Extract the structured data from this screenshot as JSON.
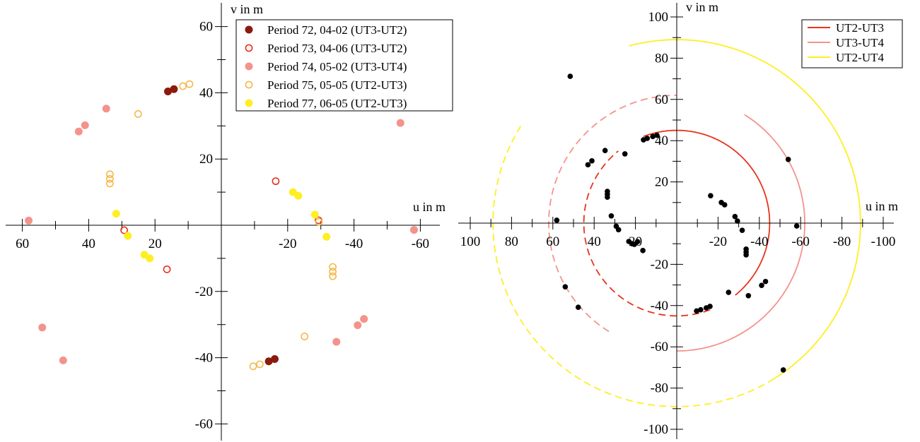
{
  "chart_data": [
    {
      "type": "scatter",
      "xlabel": "u in m",
      "ylabel": "v in m",
      "xlim": [
        65,
        -67
      ],
      "ylim": [
        -65,
        62
      ],
      "x_ticks": [
        "60",
        "40",
        "20",
        "-20",
        "-40",
        "-60"
      ],
      "y_ticks": [
        "60",
        "40",
        "20",
        "-20",
        "-40",
        "-60"
      ],
      "legend_position": "top-right",
      "series": [
        {
          "name": "Period 72, 04-02 (UT3-UT2)",
          "marker": "filled",
          "color": "#8b1a0e",
          "points": [
            [
              16.1,
              40.4
            ],
            [
              14.3,
              41.1
            ],
            [
              -14.3,
              -41.1
            ],
            [
              -16.1,
              -40.4
            ]
          ]
        },
        {
          "name": "Period 73, 04-06 (UT3-UT2)",
          "marker": "open",
          "color": "#e8331c",
          "points": [
            [
              -16.4,
              13.3
            ],
            [
              29.3,
              -1.5
            ],
            [
              16.4,
              -13.3
            ],
            [
              -29.3,
              1.5
            ]
          ]
        },
        {
          "name": "Period 74, 05-02 (UT3-UT4)",
          "marker": "filled",
          "color": "#f4938b",
          "points": [
            [
              34.7,
              35.2
            ],
            [
              41.1,
              30.2
            ],
            [
              43.0,
              28.3
            ],
            [
              -54.0,
              30.9
            ],
            [
              58.1,
              1.4
            ],
            [
              -58.1,
              -1.4
            ],
            [
              -34.7,
              -35.2
            ],
            [
              -41.1,
              -30.2
            ],
            [
              -43.0,
              -28.3
            ],
            [
              54.0,
              -30.9
            ],
            [
              47.7,
              -40.8
            ]
          ]
        },
        {
          "name": "Period 75, 05-05 (UT2-UT3)",
          "marker": "open",
          "color": "#f5b84a",
          "points": [
            [
              25.1,
              33.6
            ],
            [
              11.6,
              42.0
            ],
            [
              9.6,
              42.6
            ],
            [
              33.6,
              15.4
            ],
            [
              33.6,
              14.0
            ],
            [
              33.6,
              12.6
            ],
            [
              -29.4,
              1.0
            ],
            [
              -11.6,
              -42.0
            ],
            [
              -9.6,
              -42.6
            ],
            [
              -25.1,
              -33.6
            ],
            [
              -33.6,
              -15.4
            ],
            [
              -33.6,
              -14.0
            ],
            [
              -33.6,
              -12.6
            ]
          ]
        },
        {
          "name": "Period 77, 06-05 (UT2-UT3)",
          "marker": "filled",
          "color": "#ffee22",
          "points": [
            [
              -21.6,
              10.0
            ],
            [
              -23.2,
              8.9
            ],
            [
              -28.2,
              3.2
            ],
            [
              31.7,
              3.5
            ],
            [
              28.2,
              -3.2
            ],
            [
              23.2,
              -8.9
            ],
            [
              21.6,
              -10.0
            ],
            [
              -31.7,
              -3.5
            ]
          ]
        }
      ]
    },
    {
      "type": "line",
      "xlabel": "u in m",
      "ylabel": "v in m",
      "xlim": [
        105,
        -105
      ],
      "ylim": [
        -105,
        105
      ],
      "x_ticks": [
        "100",
        "80",
        "60",
        "40",
        "20",
        "-20",
        "-40",
        "-60",
        "-80",
        "-100"
      ],
      "y_ticks": [
        "100",
        "80",
        "60",
        "40",
        "20",
        "-20",
        "-40",
        "-60",
        "-80",
        "-100"
      ],
      "legend_position": "top-right",
      "series": [
        {
          "name": "UT2-UT3",
          "color": "#e8331c",
          "radius": 45,
          "solid_from_deg": 69,
          "solid_to_deg": 231,
          "dashed_from_deg": 249,
          "dashed_to_deg": 411
        },
        {
          "name": "UT3-UT4",
          "color": "#f4938b",
          "radius": 62,
          "solid_from_deg": 122,
          "solid_to_deg": 270,
          "dashed_from_deg": 302,
          "dashed_to_deg": 450
        },
        {
          "name": "UT2-UT4",
          "color": "#ffee22",
          "radius": 89,
          "solid_from_deg": 75,
          "solid_to_deg": 238,
          "dashed_from_deg": 238,
          "dashed_to_deg": 392
        }
      ],
      "observed_points": [
        [
          16.1,
          40.4
        ],
        [
          14.3,
          41.1
        ],
        [
          -14.3,
          -41.1
        ],
        [
          -16.1,
          -40.4
        ],
        [
          -16.4,
          13.3
        ],
        [
          16.4,
          -13.3
        ],
        [
          34.7,
          35.2
        ],
        [
          41.1,
          30.2
        ],
        [
          43.0,
          28.3
        ],
        [
          -54.0,
          30.9
        ],
        [
          58.1,
          1.4
        ],
        [
          -58.1,
          -1.4
        ],
        [
          -34.7,
          -35.2
        ],
        [
          -41.1,
          -30.2
        ],
        [
          -43.0,
          -28.3
        ],
        [
          54.0,
          -30.9
        ],
        [
          47.7,
          -40.8
        ],
        [
          25.1,
          33.6
        ],
        [
          11.6,
          42.0
        ],
        [
          9.6,
          42.6
        ],
        [
          33.6,
          15.4
        ],
        [
          33.6,
          14.0
        ],
        [
          33.6,
          12.6
        ],
        [
          -11.6,
          -42.0
        ],
        [
          -9.6,
          -42.6
        ],
        [
          -25.1,
          -33.6
        ],
        [
          -33.6,
          -15.4
        ],
        [
          -33.6,
          -14.0
        ],
        [
          -33.6,
          -12.6
        ],
        [
          -21.6,
          10.0
        ],
        [
          -23.2,
          8.9
        ],
        [
          -28.2,
          3.2
        ],
        [
          31.7,
          3.5
        ],
        [
          28.2,
          -3.2
        ],
        [
          23.2,
          -8.9
        ],
        [
          21.6,
          -10.0
        ],
        [
          -31.7,
          -3.5
        ],
        [
          51.6,
          71.2
        ],
        [
          -51.6,
          -71.2
        ],
        [
          -29.4,
          1.0
        ],
        [
          29.3,
          -1.5
        ],
        [
          19.0,
          -9.0
        ],
        [
          20.5,
          -10.3
        ]
      ]
    }
  ]
}
